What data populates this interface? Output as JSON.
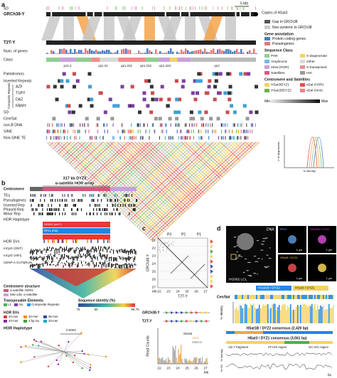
{
  "panel_a": {
    "label": "a",
    "scale": "5 Mb",
    "hsat3_note": "Copies of HSat3",
    "sd_top": "SD",
    "assemblies": [
      "GRCh38-Y",
      "T2T-Y"
    ],
    "tracks": [
      "Num. of genes",
      "Class",
      "Palindromes",
      "Inverted Repeats",
      "AZF",
      "TSPY",
      "DAZ",
      "RBMY",
      "SD",
      "Cen/Sat",
      "non-B DNA",
      "SINE",
      "Non-SINE TE"
    ],
    "composite": "Composite Repeats",
    "bands": [
      "p11.2",
      "q11.21",
      "q11.221",
      "q11.222",
      "q11.223",
      "q12"
    ],
    "legend": {
      "gap": "Gap in GRCh38",
      "nonsyntenic": "Non-syntenic to GRCh38",
      "gene_title": "Gene annotation",
      "genes": [
        "Protein coding genes",
        "Pseudogenes"
      ],
      "class_title": "Sequence Class",
      "classes": [
        "PAR",
        "X-degenerate",
        "Ampliconic",
        "Other",
        "αSat (HOR)",
        "X-transposed",
        "Satellites",
        "Het."
      ],
      "cen_title": "Centromere and Satellites",
      "cen": [
        "HSat3/DYZ1",
        "αSat (HOR)",
        "HSat1B/DYZ2",
        "αSat (mon)"
      ],
      "min": "Min",
      "max": "Max"
    },
    "inset": {
      "ylabel": "# of alignments",
      "xlabel": "% Identity"
    }
  },
  "panel_b": {
    "label": "b",
    "title": "317 kb DYZ3",
    "subtitle": "α-satellite HOR array",
    "tracks": [
      "Centromere",
      "TEs",
      "Pseudogenes",
      "Inverted Rep",
      "Phased Rep",
      "Minor Rep",
      "HOR Haplotype"
    ],
    "haplotypes": [
      "HG002 (chrY)",
      "RP11 (Ri8)"
    ],
    "svs": "HOR SVs",
    "methyl": [
      "mCpG (ONT)",
      "mCpG (HiFi)",
      "CENP-A CUT&RUN"
    ],
    "coord": "10.95 Mb",
    "legend": {
      "structure_title": "Centromere structure",
      "structure": [
        "α-satellite HORs",
        "Mon./div. α-satellite"
      ],
      "te_title": "Transposable Elements",
      "te": [
        "L1",
        "Alu",
        "Composite Repeats"
      ],
      "identity_title": "Sequence identity (%)",
      "identity_ticks": [
        75,
        80,
        99.75
      ],
      "sv_title": "HOR SVs",
      "sv": [
        "24-mer",
        "34-mer",
        "36-mer",
        "44-mer",
        "4 bp ins.",
        "33-mer"
      ]
    },
    "tree_title": "HOR Haplotype",
    "tree_scale": 0.0004
  },
  "panel_c": {
    "label": "c",
    "palindromes": [
      "P3",
      "P2",
      "P1"
    ],
    "yaxis": "GRCh38-Y",
    "xaxis": "T2T-Y",
    "yticks": [
      21,
      22,
      23,
      24,
      25,
      26,
      27
    ],
    "unit": "Mb",
    "xticks": [
      22,
      23,
      24,
      25,
      26,
      27
    ],
    "tracks": [
      "GRCh38-Y",
      "T2T-Y"
    ],
    "reads": "Read Counts",
    "strand": [
      "Strand",
      "Crick",
      "Watson"
    ]
  },
  "panel_d": {
    "label": "d",
    "dna": "DNA",
    "cell": "HG002 LCL",
    "scale": "1 μm",
    "probes": [
      "HSat1B / DYZ2",
      "HSat3 / DYZ1"
    ],
    "cen": "Cen/Sat",
    "identity": "% Identity",
    "con1": "HSat1B / DYZ2 consensus (2,420 bp)",
    "con2": "HSat3 / DYZ1 consensus (3,561 bp)",
    "regions": [
      "Alu Y fragment",
      "AT-rich region",
      "GC-rich region"
    ],
    "gc": "% GC",
    "bp": "bp"
  }
}
